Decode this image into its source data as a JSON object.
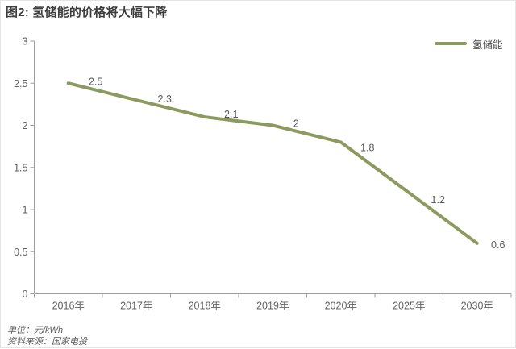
{
  "header": {
    "title": "图2: 氢储能的价格将大幅下降"
  },
  "footer": {
    "unit": "单位：元/kWh",
    "source": "资料来源：国家电投"
  },
  "colors": {
    "line": "#8b9b5f",
    "axis": "#9e9e9e",
    "tick_text": "#616161",
    "data_label_text": "#595959",
    "title_text": "#3d3d3d",
    "card_border": "#e4e4e4"
  },
  "chart_data": {
    "type": "line",
    "title": "图2: 氢储能的价格将大幅下降",
    "unit": "元/kWh",
    "categories": [
      "2016年",
      "2017年",
      "2018年",
      "2019年",
      "2020年",
      "2025年",
      "2030年"
    ],
    "series": [
      {
        "name": "氢储能",
        "values": [
          2.5,
          2.3,
          2.1,
          2,
          1.8,
          1.2,
          0.6
        ]
      }
    ],
    "data_labels": [
      "2.5",
      "2.3",
      "2.1",
      "2",
      "1.8",
      "1.2",
      "0.6"
    ],
    "xlabel": "",
    "ylabel": "",
    "ylim": [
      0,
      3
    ],
    "yticks": [
      0,
      0.5,
      1,
      1.5,
      2,
      2.5,
      3
    ],
    "grid": false,
    "legend_position": "top-right",
    "line_color": "#8b9b5f"
  }
}
